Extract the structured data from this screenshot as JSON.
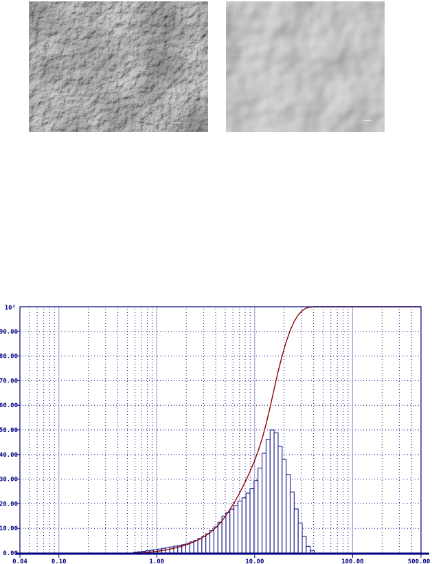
{
  "micrographs": {
    "left": {
      "description": "SEM micrograph of fine porous granular fracture surface",
      "scale_label": "2.0 µm"
    },
    "right": {
      "description": "SEM micrograph of large angular grains",
      "scale_label": "2.0 µm"
    }
  },
  "chart_data": {
    "type": "bar",
    "overlay": "cumulative line",
    "title": "",
    "xlabel": "",
    "ylabel": "",
    "x_axis": {
      "scale": "log",
      "min": 0.04,
      "max": 500,
      "tick_values": [
        0.04,
        0.1,
        1.0,
        10.0,
        100.0,
        500.0
      ],
      "tick_labels": [
        "0.04",
        "0.10",
        "1.00",
        "10.00",
        "100.00",
        "500.00"
      ]
    },
    "y_axis": {
      "min": 0,
      "max": 100,
      "top_label": "10²",
      "tick_values": [
        90,
        80,
        70,
        60,
        50,
        40,
        30,
        20,
        10,
        0
      ],
      "tick_labels": [
        "90.00",
        "80.00",
        "70.00",
        "60.00",
        "50.00",
        "40.00",
        "30.00",
        "20.00",
        "10.00",
        "0.00"
      ]
    },
    "grid": "dotted",
    "legend": "none",
    "histogram": {
      "units": "µm",
      "first_bin_left_um": 0.58,
      "bin_ratio": 1.099,
      "heights_percent": [
        0.3,
        0.5,
        0.7,
        0.9,
        1.1,
        1.3,
        1.6,
        1.9,
        2.2,
        2.5,
        2.8,
        3.0,
        3.4,
        4.0,
        4.5,
        5.1,
        5.9,
        6.7,
        7.8,
        9.1,
        10.6,
        12.5,
        15.0,
        16.4,
        17.8,
        19.2,
        21.1,
        22.4,
        24.3,
        26.1,
        29.4,
        34.5,
        40.5,
        46.2,
        50.0,
        48.8,
        43.3,
        38.0,
        31.9,
        24.8,
        17.9,
        12.2,
        6.8,
        2.7,
        0.9
      ]
    },
    "cumulative_curve": {
      "definition": "normalized cumulative sum of histogram bins, 0 to 100 %",
      "median_um_approx": 12.7,
      "reaches_100_at_um_approx": 33
    },
    "colors": {
      "grid": "#000080",
      "axis": "#000080",
      "bars_outline": "#000080",
      "bars_fill": "#ffffff",
      "major_gridline": "#9f9fd0",
      "cumulative": "#8b0000"
    }
  }
}
